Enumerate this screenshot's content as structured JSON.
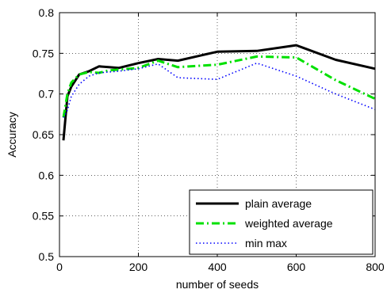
{
  "chart_data": {
    "type": "line",
    "title": "",
    "xlabel": "number of seeds",
    "ylabel": "Accuracy",
    "xlim": [
      0,
      800
    ],
    "ylim": [
      0.5,
      0.8
    ],
    "xticks": [
      "0",
      "200",
      "400",
      "600",
      "800"
    ],
    "yticks": [
      "0.5",
      "0.55",
      "0.6",
      "0.65",
      "0.7",
      "0.75",
      "0.8"
    ],
    "grid": true,
    "legend_position": "bottom-right",
    "series": [
      {
        "name": "plain average",
        "color": "#000000",
        "style": "solid",
        "x": [
          10,
          20,
          30,
          50,
          75,
          100,
          125,
          150,
          200,
          250,
          300,
          400,
          500,
          600,
          700,
          800
        ],
        "y": [
          0.643,
          0.697,
          0.709,
          0.724,
          0.728,
          0.734,
          0.733,
          0.732,
          0.738,
          0.743,
          0.741,
          0.752,
          0.753,
          0.76,
          0.742,
          0.731
        ]
      },
      {
        "name": "weighted average",
        "color": "#00e000",
        "style": "dashdot",
        "x": [
          10,
          20,
          30,
          50,
          75,
          100,
          125,
          150,
          200,
          250,
          300,
          400,
          500,
          600,
          700,
          800
        ],
        "y": [
          0.671,
          0.7,
          0.714,
          0.724,
          0.727,
          0.726,
          0.729,
          0.73,
          0.732,
          0.741,
          0.733,
          0.736,
          0.746,
          0.745,
          0.717,
          0.694
        ]
      },
      {
        "name": "min max",
        "color": "#0000ff",
        "style": "dotted",
        "x": [
          10,
          20,
          30,
          50,
          75,
          100,
          125,
          150,
          200,
          250,
          300,
          400,
          500,
          600,
          700,
          800
        ],
        "y": [
          0.671,
          0.68,
          0.697,
          0.712,
          0.722,
          0.726,
          0.727,
          0.728,
          0.731,
          0.737,
          0.72,
          0.718,
          0.738,
          0.722,
          0.7,
          0.681
        ]
      }
    ]
  }
}
